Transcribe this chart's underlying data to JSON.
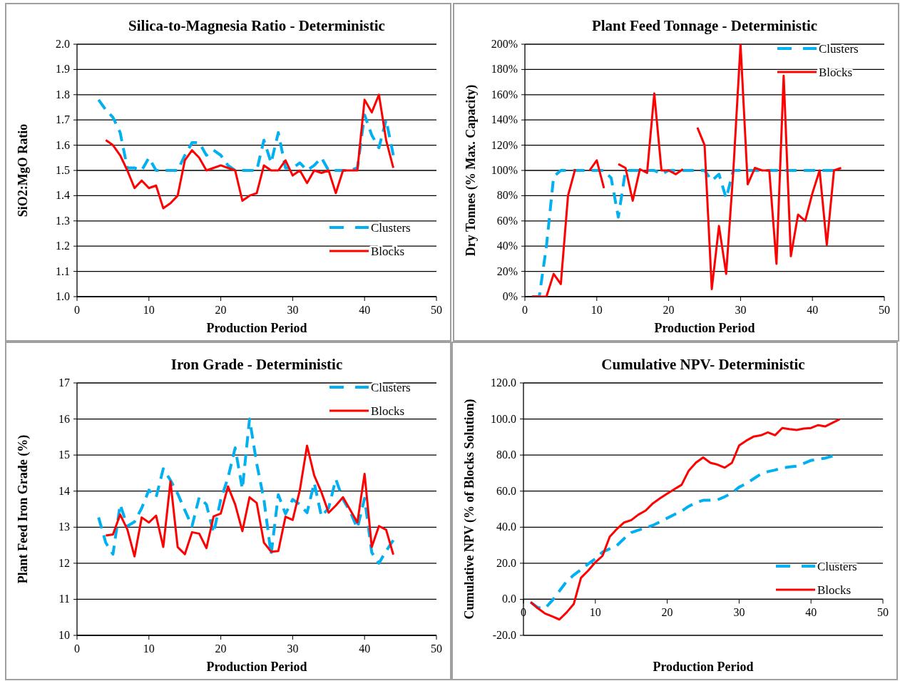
{
  "chart_data": [
    {
      "type": "line",
      "title": "Silica-to-Magnesia Ratio - Deterministic",
      "xlabel": "Production Period",
      "ylabel": "SiO2:MgO Ratio",
      "xlim": [
        0,
        50
      ],
      "xticks": [
        0,
        10,
        20,
        30,
        40,
        50
      ],
      "ylim": [
        1.0,
        2.0
      ],
      "yticks": [
        {
          "value": 1.0,
          "label": "1.0"
        },
        {
          "value": 1.1,
          "label": "1.1"
        },
        {
          "value": 1.2,
          "label": "1.2"
        },
        {
          "value": 1.3,
          "label": "1.3"
        },
        {
          "value": 1.4,
          "label": "1.4"
        },
        {
          "value": 1.5,
          "label": "1.5"
        },
        {
          "value": 1.6,
          "label": "1.6"
        },
        {
          "value": 1.7,
          "label": "1.7"
        },
        {
          "value": 1.8,
          "label": "1.8"
        },
        {
          "value": 1.9,
          "label": "1.9"
        },
        {
          "value": 2.0,
          "label": "2.0"
        }
      ],
      "grid": "y",
      "legend": "bottom right",
      "series": [
        {
          "name": "Clusters",
          "color": "#00b0f0",
          "line_style": "dashed",
          "x": [
            3,
            4,
            5,
            6,
            7,
            8,
            9,
            10,
            11,
            12,
            13,
            14,
            15,
            16,
            17,
            18,
            19,
            20,
            21,
            22,
            23,
            24,
            25,
            26,
            27,
            28,
            29,
            30,
            31,
            32,
            33,
            34,
            35,
            36,
            37,
            38,
            39,
            40,
            41,
            42,
            43,
            44
          ],
          "values": [
            1.78,
            1.74,
            1.71,
            1.65,
            1.51,
            1.51,
            1.5,
            1.55,
            1.5,
            1.5,
            1.5,
            1.5,
            1.56,
            1.61,
            1.61,
            1.56,
            1.58,
            1.56,
            1.52,
            1.5,
            1.5,
            1.5,
            1.5,
            1.62,
            1.53,
            1.65,
            1.51,
            1.51,
            1.53,
            1.5,
            1.52,
            1.55,
            1.5,
            1.5,
            1.5,
            1.5,
            1.51,
            1.72,
            1.64,
            1.59,
            1.7,
            1.56
          ]
        },
        {
          "name": "Blocks",
          "color": "#ff0000",
          "line_style": "solid",
          "x": [
            4,
            5,
            6,
            7,
            8,
            9,
            10,
            11,
            12,
            13,
            14,
            15,
            16,
            17,
            18,
            19,
            20,
            21,
            22,
            23,
            24,
            25,
            26,
            27,
            28,
            29,
            30,
            31,
            32,
            33,
            34,
            35,
            36,
            37,
            38,
            39,
            40,
            41,
            42,
            43,
            44
          ],
          "values": [
            1.62,
            1.6,
            1.56,
            1.5,
            1.43,
            1.46,
            1.43,
            1.44,
            1.35,
            1.37,
            1.4,
            1.54,
            1.58,
            1.55,
            1.5,
            1.51,
            1.52,
            1.51,
            1.5,
            1.38,
            1.4,
            1.41,
            1.52,
            1.5,
            1.5,
            1.54,
            1.48,
            1.5,
            1.45,
            1.5,
            1.49,
            1.5,
            1.41,
            1.5,
            1.5,
            1.5,
            1.78,
            1.73,
            1.8,
            1.62,
            1.51
          ]
        }
      ]
    },
    {
      "type": "line",
      "title": "Plant Feed Tonnage - Deterministic",
      "xlabel": "Production Period",
      "ylabel": "Dry Tonnes (% Max. Capacity)",
      "xlim": [
        0,
        50
      ],
      "xticks": [
        0,
        10,
        20,
        30,
        40,
        50
      ],
      "ylim": [
        0,
        200
      ],
      "yticks": [
        {
          "value": 0,
          "label": "0%"
        },
        {
          "value": 20,
          "label": "20%"
        },
        {
          "value": 40,
          "label": "40%"
        },
        {
          "value": 60,
          "label": "60%"
        },
        {
          "value": 80,
          "label": "80%"
        },
        {
          "value": 100,
          "label": "100%"
        },
        {
          "value": 120,
          "label": "120%"
        },
        {
          "value": 140,
          "label": "140%"
        },
        {
          "value": 160,
          "label": "160%"
        },
        {
          "value": 180,
          "label": "180%"
        },
        {
          "value": 200,
          "label": "200%"
        }
      ],
      "grid": "y",
      "legend": "top right",
      "series": [
        {
          "name": "Clusters",
          "color": "#00b0f0",
          "line_style": "dashed",
          "x": [
            1,
            2,
            3,
            4,
            5,
            6,
            7,
            8,
            9,
            10,
            11,
            12,
            13,
            14,
            15,
            16,
            17,
            18,
            19,
            20,
            21,
            22,
            23,
            24,
            25,
            26,
            27,
            28,
            29,
            30,
            31,
            32,
            33,
            34,
            35,
            36,
            37,
            38,
            39,
            40,
            41,
            42,
            43
          ],
          "values": [
            0,
            0,
            40,
            95,
            100,
            100,
            100,
            100,
            100,
            100,
            100,
            94,
            63,
            100,
            100,
            100,
            100,
            100,
            97,
            100,
            100,
            100,
            100,
            100,
            100,
            92,
            97,
            78,
            100,
            100,
            100,
            100,
            100,
            100,
            100,
            100,
            100,
            100,
            100,
            100,
            100,
            100,
            100
          ]
        },
        {
          "name": "Blocks",
          "color": "#ff0000",
          "line_style": "solid",
          "x": [
            1,
            2,
            3,
            4,
            5,
            6,
            7,
            8,
            9,
            10,
            11,
            12,
            13,
            14,
            15,
            16,
            17,
            18,
            19,
            20,
            21,
            22,
            23,
            24,
            25,
            26,
            27,
            28,
            29,
            30,
            31,
            32,
            33,
            34,
            35,
            36,
            37,
            38,
            39,
            40,
            41,
            42,
            43,
            44
          ],
          "values": [
            0,
            0,
            0,
            18,
            10,
            80,
            101,
            null,
            100,
            108,
            86,
            null,
            105,
            102,
            76,
            101,
            98,
            161,
            100,
            100,
            97,
            101,
            null,
            134,
            120,
            6,
            56,
            18,
            100,
            200,
            89,
            102,
            100,
            100,
            26,
            175,
            32,
            65,
            60,
            82,
            100,
            41,
            100,
            102
          ]
        }
      ]
    },
    {
      "type": "line",
      "title": "Iron Grade - Deterministic",
      "xlabel": "Production Period",
      "ylabel": "Plant Feed Iron Grade (%)",
      "xlim": [
        0,
        50
      ],
      "xticks": [
        0,
        10,
        20,
        30,
        40,
        50
      ],
      "ylim": [
        10,
        17
      ],
      "yticks": [
        10,
        11,
        12,
        13,
        14,
        15,
        16,
        17
      ],
      "grid": "y",
      "legend": "top right",
      "series": [
        {
          "name": "Clusters",
          "color": "#00b0f0",
          "line_style": "dashed",
          "x": [
            3,
            4,
            5,
            6,
            7,
            8,
            9,
            10,
            11,
            12,
            13,
            14,
            15,
            16,
            17,
            18,
            19,
            20,
            21,
            22,
            23,
            24,
            25,
            26,
            27,
            28,
            29,
            30,
            31,
            32,
            33,
            34,
            35,
            36,
            37,
            38,
            39,
            40,
            41,
            42,
            43,
            44
          ],
          "values": [
            13.27,
            12.57,
            12.25,
            13.63,
            13.03,
            13.15,
            13.53,
            14.03,
            13.83,
            14.62,
            14.3,
            13.93,
            13.47,
            13.03,
            13.83,
            13.63,
            12.84,
            13.77,
            14.37,
            15.2,
            14.06,
            16.0,
            14.76,
            13.77,
            12.24,
            13.9,
            13.37,
            13.77,
            13.63,
            13.4,
            14.23,
            13.3,
            13.53,
            14.33,
            13.77,
            13.43,
            12.97,
            13.8,
            12.3,
            12.0,
            12.34,
            12.64
          ]
        },
        {
          "name": "Blocks",
          "color": "#ff0000",
          "line_style": "solid",
          "x": [
            4,
            5,
            6,
            7,
            8,
            9,
            10,
            11,
            12,
            13,
            14,
            15,
            16,
            17,
            18,
            19,
            20,
            21,
            22,
            23,
            24,
            25,
            26,
            27,
            28,
            29,
            30,
            31,
            32,
            33,
            34,
            35,
            36,
            37,
            38,
            39,
            40,
            41,
            42,
            43,
            44
          ],
          "values": [
            12.77,
            12.8,
            13.35,
            12.94,
            12.19,
            13.27,
            13.13,
            13.32,
            12.45,
            14.27,
            12.45,
            12.25,
            12.86,
            12.82,
            12.42,
            13.3,
            13.38,
            14.13,
            13.63,
            12.89,
            13.83,
            13.67,
            12.57,
            12.32,
            12.34,
            13.29,
            13.2,
            14.03,
            15.26,
            14.43,
            13.97,
            13.4,
            13.6,
            13.83,
            13.48,
            13.13,
            14.48,
            12.45,
            13.03,
            12.93,
            12.24
          ]
        }
      ]
    },
    {
      "type": "line",
      "title": "Cumulative NPV- Deterministic",
      "xlabel": "Production Period",
      "ylabel": "Cumulative NPV (% of Blocks Solution)",
      "xlim": [
        0,
        50
      ],
      "xticks": [
        0,
        10,
        20,
        30,
        40,
        50
      ],
      "ylim": [
        -20,
        120
      ],
      "yticks": [
        {
          "value": -20,
          "label": "-20.0"
        },
        {
          "value": 0,
          "label": "0.0"
        },
        {
          "value": 20,
          "label": "20.0"
        },
        {
          "value": 40,
          "label": "40.0"
        },
        {
          "value": 60,
          "label": "60.0"
        },
        {
          "value": 80,
          "label": "80.0"
        },
        {
          "value": 100,
          "label": "100.0"
        },
        {
          "value": 120,
          "label": "120.0"
        }
      ],
      "grid": "y",
      "legend": "bottom right",
      "series": [
        {
          "name": "Clusters",
          "color": "#00b0f0",
          "line_style": "dashed",
          "x": [
            1,
            2,
            3,
            4,
            5,
            6,
            7,
            8,
            9,
            10,
            11,
            12,
            13,
            14,
            15,
            16,
            17,
            18,
            19,
            20,
            21,
            22,
            23,
            24,
            25,
            26,
            27,
            28,
            29,
            30,
            31,
            32,
            33,
            34,
            35,
            36,
            37,
            38,
            39,
            40,
            41,
            42,
            43
          ],
          "values": [
            -1.6,
            -4.6,
            -5,
            -0.7,
            4.6,
            9.9,
            13.5,
            16.5,
            19.6,
            22.5,
            26.2,
            28,
            29.8,
            33.7,
            37,
            38.4,
            39.7,
            41,
            43,
            45,
            47,
            48.9,
            51.6,
            53.6,
            54.9,
            54.9,
            55.2,
            56.9,
            58.9,
            62.2,
            64.2,
            66.8,
            69.4,
            70.8,
            71.7,
            72.8,
            73.4,
            73.8,
            75.4,
            77,
            77.8,
            78.3,
            79.4
          ]
        },
        {
          "name": "Blocks",
          "color": "#ff0000",
          "line_style": "solid",
          "x": [
            1,
            2,
            3,
            4,
            5,
            6,
            7,
            8,
            9,
            10,
            11,
            12,
            13,
            14,
            15,
            16,
            17,
            18,
            19,
            20,
            21,
            22,
            23,
            24,
            25,
            26,
            27,
            28,
            29,
            30,
            31,
            32,
            33,
            34,
            35,
            36,
            37,
            38,
            39,
            40,
            41,
            42,
            43,
            44
          ],
          "values": [
            -1.6,
            -5,
            -7.9,
            -9.5,
            -11.2,
            -7.3,
            -2.6,
            11.9,
            15.9,
            20.5,
            24.1,
            34.7,
            39,
            42.6,
            43.9,
            47,
            49.2,
            53.2,
            56,
            58.6,
            61.1,
            63.5,
            71.4,
            75.8,
            78.7,
            75.7,
            74.7,
            73,
            75.7,
            85.3,
            88,
            90.2,
            90.9,
            92.6,
            91,
            95,
            94.4,
            93.9,
            94.7,
            95,
            96.6,
            95.9,
            97.9,
            99.9
          ]
        }
      ]
    }
  ]
}
